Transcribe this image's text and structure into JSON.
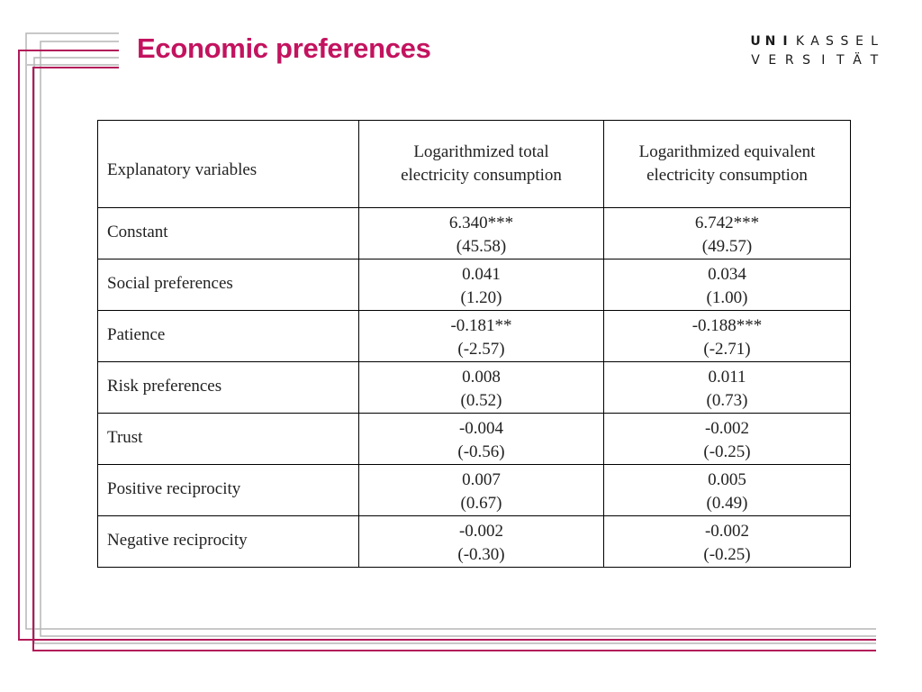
{
  "colors": {
    "title": "#c3135f",
    "frame_magenta": "#b31a5a",
    "frame_gray": "#b5b5b5",
    "logo_accent": "#c3135f",
    "logo_text": "#1a1a1a"
  },
  "slide": {
    "title": "Economic preferences"
  },
  "logo": {
    "row1": [
      "U",
      "N",
      "I",
      "K",
      "A",
      "S",
      "S",
      "E",
      "L"
    ],
    "row2": [
      "V",
      "E",
      "R",
      "S",
      "I",
      "T",
      "Ä",
      "T"
    ],
    "row1_bold": [
      0,
      1,
      2
    ]
  },
  "table": {
    "header": {
      "col0": "Explanatory variables",
      "col1": [
        "Logarithmized total",
        "electricity consumption"
      ],
      "col2": [
        "Logarithmized equivalent",
        "electricity consumption"
      ]
    },
    "rows": [
      {
        "variable": "Constant",
        "total": [
          "6.340***",
          "(45.58)"
        ],
        "equivalent": [
          "6.742***",
          "(49.57)"
        ]
      },
      {
        "variable": "Social preferences",
        "total": [
          "0.041",
          "(1.20)"
        ],
        "equivalent": [
          "0.034",
          "(1.00)"
        ]
      },
      {
        "variable": "Patience",
        "total": [
          "-0.181**",
          "(-2.57)"
        ],
        "equivalent": [
          "-0.188***",
          "(-2.71)"
        ]
      },
      {
        "variable": "Risk preferences",
        "total": [
          "0.008",
          "(0.52)"
        ],
        "equivalent": [
          "0.011",
          "(0.73)"
        ]
      },
      {
        "variable": "Trust",
        "total": [
          "-0.004",
          "(-0.56)"
        ],
        "equivalent": [
          "-0.002",
          "(-0.25)"
        ]
      },
      {
        "variable": "Positive reciprocity",
        "total": [
          "0.007",
          "(0.67)"
        ],
        "equivalent": [
          "0.005",
          "(0.49)"
        ]
      },
      {
        "variable": "Negative reciprocity",
        "total": [
          "-0.002",
          "(-0.30)"
        ],
        "equivalent": [
          "-0.002",
          "(-0.25)"
        ]
      }
    ]
  }
}
